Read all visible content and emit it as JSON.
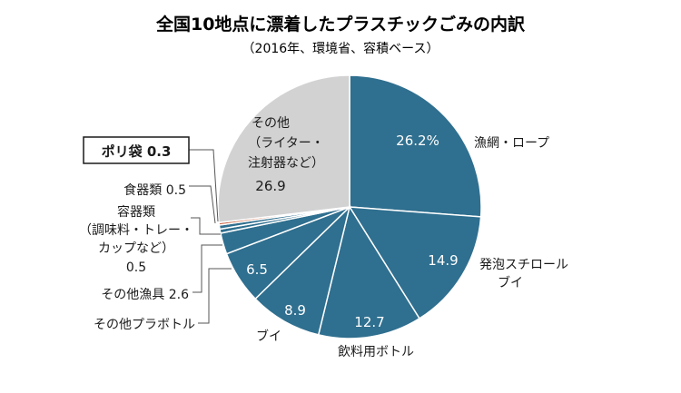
{
  "chart_data": {
    "type": "pie",
    "title": "全国10地点に漂着したプラスチックごみの内訳",
    "subtitle": "（2016年、環境省、容積ベース）",
    "slices": [
      {
        "label": "漁網・ロープ",
        "value": 26.2,
        "value_text": "26.2%",
        "color": "#2f6f8f"
      },
      {
        "label": "発泡スチロールブイ",
        "label_lines": [
          "発泡スチロール",
          "ブイ"
        ],
        "value": 14.9,
        "value_text": "14.9",
        "color": "#2f6f8f"
      },
      {
        "label": "飲料用ボトル",
        "value": 12.7,
        "value_text": "12.7",
        "color": "#2f6f8f"
      },
      {
        "label": "ブイ",
        "value": 8.9,
        "value_text": "8.9",
        "color": "#2f6f8f"
      },
      {
        "label": "その他プラボトル",
        "value": 6.5,
        "value_text": "6.5",
        "color": "#2f6f8f"
      },
      {
        "label": "その他漁具",
        "value": 2.6,
        "value_text": "その他漁具 2.6",
        "color": "#2f6f8f"
      },
      {
        "label": "容器類（調味料・トレー・カップなど）",
        "label_lines": [
          "容器類",
          "（調味料・トレー・",
          "カップなど）",
          "0.5"
        ],
        "value": 0.5,
        "color": "#2f6f8f"
      },
      {
        "label": "食器類",
        "value": 0.5,
        "value_text": "食器類 0.5",
        "color": "#2f6f8f"
      },
      {
        "label": "ポリ袋",
        "value": 0.3,
        "value_text": "ポリ袋 0.3",
        "color": "#c96a4a"
      },
      {
        "label": "その他（ライター・注射器など）",
        "label_lines": [
          "その他",
          "（ライター・",
          "注射器など）"
        ],
        "value": 26.9,
        "value_text": "26.9",
        "color": "#d2d2d2"
      }
    ]
  }
}
